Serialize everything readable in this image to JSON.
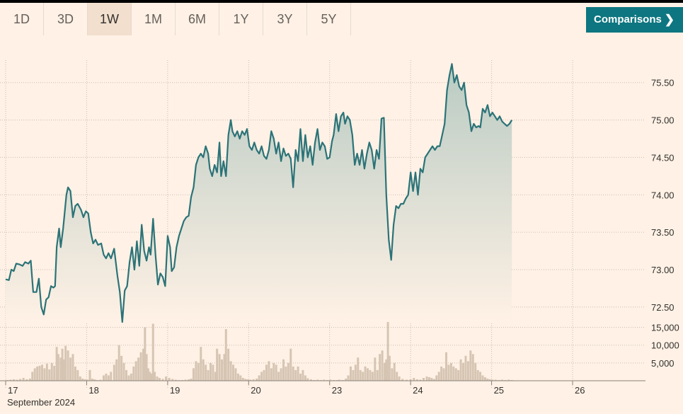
{
  "range_buttons": [
    {
      "label": "1D",
      "active": false
    },
    {
      "label": "3D",
      "active": false
    },
    {
      "label": "1W",
      "active": true
    },
    {
      "label": "1M",
      "active": false
    },
    {
      "label": "6M",
      "active": false
    },
    {
      "label": "1Y",
      "active": false
    },
    {
      "label": "3Y",
      "active": false
    },
    {
      "label": "5Y",
      "active": false
    }
  ],
  "comparisons_label": "Comparisons",
  "comparisons_icon": "chevron-right-icon",
  "month_label": "September 2024",
  "colors": {
    "line": "#2b7378",
    "fill_top": "#b9cbc3",
    "fill_bottom": "#fff1e5",
    "volume": "#d6c5b3",
    "grid": "#c9bcb1",
    "background": "#fff1e5",
    "accent": "#0d7680"
  },
  "chart_data": {
    "type": "line",
    "ylim": [
      72.3,
      75.8
    ],
    "yticks": [
      72.5,
      73.0,
      73.5,
      74.0,
      74.5,
      75.0,
      75.5
    ],
    "ytick_labels": [
      "72.50",
      "73.00",
      "73.50",
      "74.00",
      "74.50",
      "75.00",
      "75.50"
    ],
    "xlim": [
      0,
      7.9
    ],
    "days": [
      {
        "label": "17",
        "pos": 0
      },
      {
        "label": "18",
        "pos": 1
      },
      {
        "label": "19",
        "pos": 2
      },
      {
        "label": "20",
        "pos": 3
      },
      {
        "label": "23",
        "pos": 4
      },
      {
        "label": "24",
        "pos": 5
      },
      {
        "label": "25",
        "pos": 6
      },
      {
        "label": "26",
        "pos": 7
      }
    ],
    "price": [
      [
        0.0,
        72.87
      ],
      [
        0.04,
        72.86
      ],
      [
        0.07,
        73.0
      ],
      [
        0.1,
        72.98
      ],
      [
        0.13,
        73.08
      ],
      [
        0.17,
        73.07
      ],
      [
        0.21,
        73.05
      ],
      [
        0.24,
        73.1
      ],
      [
        0.28,
        73.08
      ],
      [
        0.31,
        73.12
      ],
      [
        0.34,
        72.7
      ],
      [
        0.38,
        72.7
      ],
      [
        0.41,
        72.88
      ],
      [
        0.44,
        72.5
      ],
      [
        0.47,
        72.4
      ],
      [
        0.5,
        72.6
      ],
      [
        0.53,
        72.63
      ],
      [
        0.56,
        72.78
      ],
      [
        0.59,
        72.76
      ],
      [
        0.61,
        72.78
      ],
      [
        0.63,
        73.3
      ],
      [
        0.66,
        73.55
      ],
      [
        0.68,
        73.3
      ],
      [
        0.71,
        73.55
      ],
      [
        0.75,
        74.0
      ],
      [
        0.77,
        74.1
      ],
      [
        0.8,
        74.05
      ],
      [
        0.83,
        73.7
      ],
      [
        0.86,
        73.85
      ],
      [
        0.89,
        73.88
      ],
      [
        0.93,
        73.8
      ],
      [
        0.96,
        73.7
      ],
      [
        0.99,
        73.78
      ],
      [
        1.02,
        73.75
      ],
      [
        1.05,
        73.5
      ],
      [
        1.08,
        73.35
      ],
      [
        1.11,
        73.4
      ],
      [
        1.14,
        73.33
      ],
      [
        1.18,
        73.35
      ],
      [
        1.21,
        73.2
      ],
      [
        1.24,
        73.15
      ],
      [
        1.27,
        73.22
      ],
      [
        1.3,
        73.15
      ],
      [
        1.34,
        73.28
      ],
      [
        1.38,
        72.92
      ],
      [
        1.41,
        72.7
      ],
      [
        1.44,
        72.3
      ],
      [
        1.47,
        72.72
      ],
      [
        1.5,
        72.78
      ],
      [
        1.53,
        73.1
      ],
      [
        1.56,
        73.3
      ],
      [
        1.59,
        73.0
      ],
      [
        1.62,
        73.38
      ],
      [
        1.65,
        73.05
      ],
      [
        1.68,
        73.6
      ],
      [
        1.71,
        73.25
      ],
      [
        1.74,
        73.12
      ],
      [
        1.77,
        73.3
      ],
      [
        1.79,
        73.2
      ],
      [
        1.82,
        73.68
      ],
      [
        1.85,
        73.2
      ],
      [
        1.88,
        72.8
      ],
      [
        1.91,
        72.95
      ],
      [
        1.94,
        72.9
      ],
      [
        1.97,
        72.78
      ],
      [
        2.0,
        73.45
      ],
      [
        2.03,
        73.3
      ],
      [
        2.05,
        72.98
      ],
      [
        2.08,
        73.03
      ],
      [
        2.11,
        73.3
      ],
      [
        2.14,
        73.45
      ],
      [
        2.17,
        73.55
      ],
      [
        2.2,
        73.65
      ],
      [
        2.23,
        73.7
      ],
      [
        2.26,
        73.72
      ],
      [
        2.29,
        73.97
      ],
      [
        2.32,
        74.1
      ],
      [
        2.35,
        74.4
      ],
      [
        2.38,
        74.5
      ],
      [
        2.41,
        74.55
      ],
      [
        2.44,
        74.5
      ],
      [
        2.47,
        74.65
      ],
      [
        2.5,
        74.55
      ],
      [
        2.52,
        74.35
      ],
      [
        2.55,
        74.25
      ],
      [
        2.58,
        74.4
      ],
      [
        2.61,
        74.3
      ],
      [
        2.64,
        74.7
      ],
      [
        2.66,
        74.25
      ],
      [
        2.69,
        74.45
      ],
      [
        2.72,
        74.25
      ],
      [
        2.75,
        74.8
      ],
      [
        2.78,
        75.0
      ],
      [
        2.8,
        74.85
      ],
      [
        2.83,
        74.78
      ],
      [
        2.86,
        74.85
      ],
      [
        2.89,
        74.75
      ],
      [
        2.92,
        74.85
      ],
      [
        2.95,
        74.8
      ],
      [
        2.98,
        74.88
      ],
      [
        3.01,
        74.65
      ],
      [
        3.04,
        74.6
      ],
      [
        3.07,
        74.7
      ],
      [
        3.1,
        74.6
      ],
      [
        3.13,
        74.55
      ],
      [
        3.16,
        74.65
      ],
      [
        3.19,
        74.52
      ],
      [
        3.22,
        74.48
      ],
      [
        3.25,
        74.6
      ],
      [
        3.28,
        74.85
      ],
      [
        3.31,
        74.75
      ],
      [
        3.34,
        74.55
      ],
      [
        3.37,
        74.7
      ],
      [
        3.4,
        74.45
      ],
      [
        3.43,
        74.62
      ],
      [
        3.46,
        74.52
      ],
      [
        3.49,
        74.55
      ],
      [
        3.52,
        74.48
      ],
      [
        3.55,
        74.1
      ],
      [
        3.58,
        74.6
      ],
      [
        3.61,
        74.45
      ],
      [
        3.64,
        74.88
      ],
      [
        3.67,
        74.45
      ],
      [
        3.7,
        74.8
      ],
      [
        3.73,
        74.5
      ],
      [
        3.76,
        74.65
      ],
      [
        3.79,
        74.4
      ],
      [
        3.82,
        74.7
      ],
      [
        3.85,
        74.88
      ],
      [
        3.88,
        74.6
      ],
      [
        3.91,
        74.7
      ],
      [
        3.94,
        74.65
      ],
      [
        3.97,
        74.48
      ],
      [
        4.0,
        74.5
      ],
      [
        4.03,
        74.72
      ],
      [
        4.05,
        74.8
      ],
      [
        4.08,
        75.08
      ],
      [
        4.11,
        74.85
      ],
      [
        4.14,
        75.05
      ],
      [
        4.17,
        75.1
      ],
      [
        4.19,
        74.95
      ],
      [
        4.22,
        75.05
      ],
      [
        4.25,
        75.0
      ],
      [
        4.28,
        74.8
      ],
      [
        4.31,
        74.4
      ],
      [
        4.34,
        74.55
      ],
      [
        4.37,
        74.4
      ],
      [
        4.4,
        74.6
      ],
      [
        4.43,
        74.35
      ],
      [
        4.46,
        74.55
      ],
      [
        4.49,
        74.7
      ],
      [
        4.52,
        74.6
      ],
      [
        4.55,
        74.35
      ],
      [
        4.58,
        74.6
      ],
      [
        4.61,
        74.48
      ],
      [
        4.64,
        75.02
      ],
      [
        4.67,
        75.03
      ],
      [
        4.7,
        74.0
      ],
      [
        4.73,
        73.4
      ],
      [
        4.76,
        73.13
      ],
      [
        4.79,
        73.6
      ],
      [
        4.82,
        73.85
      ],
      [
        4.85,
        73.82
      ],
      [
        4.88,
        73.88
      ],
      [
        4.91,
        73.88
      ],
      [
        4.94,
        73.95
      ],
      [
        4.97,
        74.0
      ],
      [
        5.0,
        74.3
      ],
      [
        5.03,
        74.05
      ],
      [
        5.06,
        74.3
      ],
      [
        5.09,
        74.0
      ],
      [
        5.12,
        74.35
      ],
      [
        5.15,
        74.3
      ],
      [
        5.18,
        74.5
      ],
      [
        5.21,
        74.55
      ],
      [
        5.24,
        74.6
      ],
      [
        5.27,
        74.65
      ],
      [
        5.3,
        74.6
      ],
      [
        5.33,
        74.65
      ],
      [
        5.36,
        74.65
      ],
      [
        5.39,
        74.8
      ],
      [
        5.42,
        74.95
      ],
      [
        5.45,
        75.4
      ],
      [
        5.48,
        75.6
      ],
      [
        5.51,
        75.75
      ],
      [
        5.54,
        75.5
      ],
      [
        5.57,
        75.6
      ],
      [
        5.6,
        75.45
      ],
      [
        5.63,
        75.4
      ],
      [
        5.66,
        75.5
      ],
      [
        5.69,
        75.2
      ],
      [
        5.72,
        75.1
      ],
      [
        5.75,
        74.85
      ],
      [
        5.78,
        74.95
      ],
      [
        5.81,
        74.9
      ],
      [
        5.84,
        74.92
      ],
      [
        5.86,
        74.9
      ],
      [
        5.89,
        75.15
      ],
      [
        5.92,
        75.1
      ],
      [
        5.95,
        75.2
      ],
      [
        5.98,
        75.05
      ],
      [
        6.01,
        75.1
      ],
      [
        6.04,
        75.05
      ],
      [
        6.07,
        75.0
      ],
      [
        6.1,
        75.05
      ],
      [
        6.13,
        74.98
      ],
      [
        6.16,
        74.95
      ],
      [
        6.19,
        74.92
      ],
      [
        6.22,
        74.95
      ],
      [
        6.25,
        75.0
      ]
    ],
    "volume_ylim": [
      0,
      16500
    ],
    "volume_yticks": [
      5000,
      10000,
      15000
    ],
    "volume_ytick_labels": [
      "5,000",
      "10,000",
      "15,000"
    ],
    "volume": [
      [
        0.02,
        200
      ],
      [
        0.06,
        300
      ],
      [
        0.1,
        400
      ],
      [
        0.14,
        300
      ],
      [
        0.18,
        500
      ],
      [
        0.22,
        800
      ],
      [
        0.26,
        400
      ],
      [
        0.3,
        600
      ],
      [
        0.33,
        2500
      ],
      [
        0.36,
        3500
      ],
      [
        0.39,
        4000
      ],
      [
        0.42,
        4200
      ],
      [
        0.45,
        4500
      ],
      [
        0.48,
        3500
      ],
      [
        0.51,
        4800
      ],
      [
        0.54,
        3200
      ],
      [
        0.57,
        5000
      ],
      [
        0.6,
        4200
      ],
      [
        0.63,
        9500
      ],
      [
        0.65,
        7500
      ],
      [
        0.68,
        6500
      ],
      [
        0.7,
        9000
      ],
      [
        0.72,
        6000
      ],
      [
        0.74,
        9800
      ],
      [
        0.77,
        8500
      ],
      [
        0.8,
        6500
      ],
      [
        0.83,
        7500
      ],
      [
        0.86,
        4000
      ],
      [
        0.89,
        3000
      ],
      [
        0.92,
        1200
      ],
      [
        0.95,
        600
      ],
      [
        0.98,
        400
      ],
      [
        1.01,
        300
      ],
      [
        1.04,
        3000
      ],
      [
        1.07,
        600
      ],
      [
        1.1,
        400
      ],
      [
        1.13,
        200
      ],
      [
        1.17,
        300
      ],
      [
        1.21,
        1500
      ],
      [
        1.24,
        2000
      ],
      [
        1.27,
        1500
      ],
      [
        1.3,
        2500
      ],
      [
        1.34,
        4500
      ],
      [
        1.37,
        6000
      ],
      [
        1.4,
        10000
      ],
      [
        1.43,
        7000
      ],
      [
        1.46,
        5000
      ],
      [
        1.49,
        3000
      ],
      [
        1.52,
        1500
      ],
      [
        1.55,
        2000
      ],
      [
        1.58,
        4000
      ],
      [
        1.61,
        5500
      ],
      [
        1.64,
        6500
      ],
      [
        1.67,
        8000
      ],
      [
        1.7,
        9000
      ],
      [
        1.72,
        15000
      ],
      [
        1.74,
        7500
      ],
      [
        1.76,
        3500
      ],
      [
        1.78,
        2500
      ],
      [
        1.8,
        2000
      ],
      [
        1.82,
        16000
      ],
      [
        1.84,
        2500
      ],
      [
        1.87,
        1200
      ],
      [
        1.9,
        800
      ],
      [
        1.94,
        500
      ],
      [
        1.98,
        1200
      ],
      [
        2.02,
        800
      ],
      [
        2.06,
        500
      ],
      [
        2.1,
        300
      ],
      [
        2.14,
        200
      ],
      [
        2.18,
        200
      ],
      [
        2.22,
        300
      ],
      [
        2.26,
        400
      ],
      [
        2.29,
        600
      ],
      [
        2.32,
        3500
      ],
      [
        2.35,
        5500
      ],
      [
        2.38,
        5000
      ],
      [
        2.41,
        9500
      ],
      [
        2.44,
        6000
      ],
      [
        2.47,
        4500
      ],
      [
        2.5,
        3000
      ],
      [
        2.53,
        5000
      ],
      [
        2.56,
        4500
      ],
      [
        2.59,
        2500
      ],
      [
        2.61,
        9000
      ],
      [
        2.64,
        7500
      ],
      [
        2.67,
        6000
      ],
      [
        2.7,
        7500
      ],
      [
        2.72,
        14500
      ],
      [
        2.75,
        9000
      ],
      [
        2.78,
        5500
      ],
      [
        2.81,
        4500
      ],
      [
        2.84,
        3500
      ],
      [
        2.87,
        2000
      ],
      [
        2.9,
        1500
      ],
      [
        2.93,
        800
      ],
      [
        2.96,
        500
      ],
      [
        2.99,
        400
      ],
      [
        3.02,
        300
      ],
      [
        3.06,
        400
      ],
      [
        3.1,
        600
      ],
      [
        3.13,
        1500
      ],
      [
        3.16,
        2500
      ],
      [
        3.19,
        3000
      ],
      [
        3.22,
        4500
      ],
      [
        3.25,
        5500
      ],
      [
        3.28,
        3500
      ],
      [
        3.31,
        5000
      ],
      [
        3.34,
        4500
      ],
      [
        3.37,
        2500
      ],
      [
        3.4,
        3500
      ],
      [
        3.43,
        6000
      ],
      [
        3.46,
        4000
      ],
      [
        3.49,
        5000
      ],
      [
        3.52,
        9000
      ],
      [
        3.55,
        4000
      ],
      [
        3.58,
        3000
      ],
      [
        3.61,
        4000
      ],
      [
        3.64,
        2000
      ],
      [
        3.67,
        3000
      ],
      [
        3.7,
        1500
      ],
      [
        3.73,
        700
      ],
      [
        3.77,
        400
      ],
      [
        3.81,
        200
      ],
      [
        3.85,
        300
      ],
      [
        3.89,
        200
      ],
      [
        3.93,
        300
      ],
      [
        3.97,
        200
      ],
      [
        4.01,
        300
      ],
      [
        4.05,
        200
      ],
      [
        4.09,
        200
      ],
      [
        4.12,
        300
      ],
      [
        4.16,
        200
      ],
      [
        4.2,
        600
      ],
      [
        4.23,
        1500
      ],
      [
        4.26,
        4000
      ],
      [
        4.29,
        3000
      ],
      [
        4.32,
        4500
      ],
      [
        4.35,
        6500
      ],
      [
        4.38,
        3000
      ],
      [
        4.41,
        2500
      ],
      [
        4.44,
        4000
      ],
      [
        4.47,
        3500
      ],
      [
        4.5,
        3000
      ],
      [
        4.53,
        2500
      ],
      [
        4.56,
        6500
      ],
      [
        4.59,
        3000
      ],
      [
        4.62,
        7500
      ],
      [
        4.65,
        8500
      ],
      [
        4.68,
        5000
      ],
      [
        4.7,
        6000
      ],
      [
        4.72,
        16500
      ],
      [
        4.74,
        7000
      ],
      [
        4.77,
        3500
      ],
      [
        4.8,
        5000
      ],
      [
        4.83,
        2500
      ],
      [
        4.86,
        1200
      ],
      [
        4.9,
        500
      ],
      [
        4.95,
        300
      ],
      [
        5.0,
        400
      ],
      [
        5.04,
        800
      ],
      [
        5.08,
        400
      ],
      [
        5.12,
        300
      ],
      [
        5.16,
        800
      ],
      [
        5.2,
        1200
      ],
      [
        5.23,
        1000
      ],
      [
        5.26,
        800
      ],
      [
        5.29,
        500
      ],
      [
        5.32,
        1500
      ],
      [
        5.35,
        2500
      ],
      [
        5.38,
        4000
      ],
      [
        5.41,
        3500
      ],
      [
        5.44,
        8000
      ],
      [
        5.47,
        4500
      ],
      [
        5.5,
        5000
      ],
      [
        5.53,
        4000
      ],
      [
        5.56,
        3500
      ],
      [
        5.59,
        3000
      ],
      [
        5.62,
        6000
      ],
      [
        5.65,
        5000
      ],
      [
        5.68,
        7000
      ],
      [
        5.71,
        5500
      ],
      [
        5.74,
        8500
      ],
      [
        5.77,
        7500
      ],
      [
        5.8,
        5000
      ],
      [
        5.83,
        3000
      ],
      [
        5.86,
        2500
      ],
      [
        5.89,
        1500
      ],
      [
        5.92,
        1000
      ],
      [
        5.95,
        600
      ],
      [
        5.98,
        400
      ],
      [
        6.01,
        300
      ],
      [
        6.05,
        300
      ],
      [
        6.09,
        200
      ],
      [
        6.13,
        300
      ],
      [
        6.17,
        200
      ],
      [
        6.21,
        300
      ],
      [
        6.25,
        200
      ]
    ]
  }
}
